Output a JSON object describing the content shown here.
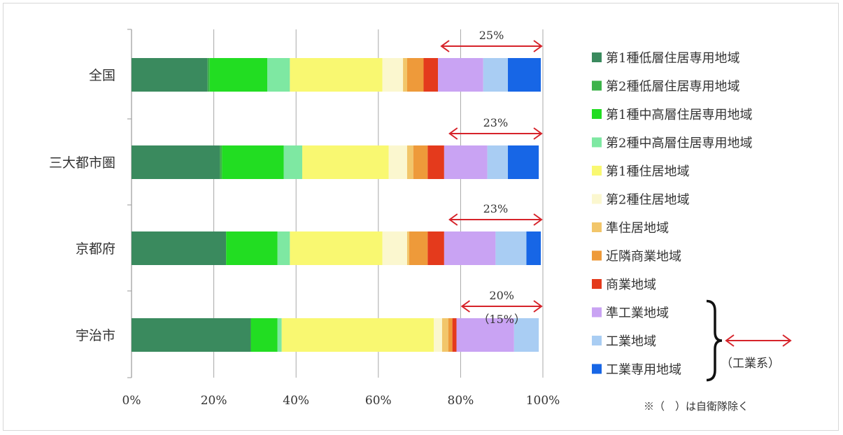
{
  "chart_data": {
    "type": "bar",
    "orientation": "horizontal",
    "stacked": "percent",
    "categories": [
      "全国",
      "三大都市圏",
      "京都府",
      "宇治市"
    ],
    "xlim": [
      0,
      100
    ],
    "x_ticks": [
      "0%",
      "20%",
      "40%",
      "60%",
      "80%",
      "100%"
    ],
    "grid": "vertical",
    "legend_position": "right",
    "series": [
      {
        "name": "第1種低層住居専用地域",
        "color": "#3a8a5e",
        "values": [
          18.5,
          21.5,
          23.0,
          29.0
        ]
      },
      {
        "name": "第2種低層住居専用地域",
        "color": "#3db34a",
        "values": [
          0.5,
          0.5,
          0.0,
          0.0
        ]
      },
      {
        "name": "第1種中高層住居専用地域",
        "color": "#22dd22",
        "values": [
          14.0,
          15.0,
          12.5,
          6.5
        ]
      },
      {
        "name": "第2種中高層住居専用地域",
        "color": "#7ee8a2",
        "values": [
          5.5,
          4.5,
          3.0,
          1.0
        ]
      },
      {
        "name": "第1種住居地域",
        "color": "#f9f871",
        "values": [
          22.5,
          21.0,
          22.5,
          37.0
        ]
      },
      {
        "name": "第2種住居地域",
        "color": "#fbf7cf",
        "values": [
          5.0,
          4.5,
          6.0,
          2.0
        ]
      },
      {
        "name": "準住居地域",
        "color": "#f2c66a",
        "values": [
          1.0,
          1.5,
          0.5,
          1.5
        ]
      },
      {
        "name": "近隣商業地域",
        "color": "#ee9a3a",
        "values": [
          4.0,
          3.5,
          4.5,
          1.0
        ]
      },
      {
        "name": "商業地域",
        "color": "#e43a1c",
        "values": [
          3.5,
          4.0,
          4.0,
          1.0
        ]
      },
      {
        "name": "準工業地域",
        "color": "#c9a3f3",
        "values": [
          11.0,
          10.5,
          12.5,
          14.0
        ]
      },
      {
        "name": "工業地域",
        "color": "#a9cdf3",
        "values": [
          6.0,
          5.0,
          7.5,
          6.0
        ]
      },
      {
        "name": "工業専用地域",
        "color": "#1766e6",
        "values": [
          8.0,
          7.5,
          3.5,
          0.0
        ]
      }
    ],
    "annotations": [
      {
        "category": "全国",
        "text": "25%",
        "sub": "",
        "from": 75,
        "to": 100
      },
      {
        "category": "三大都市圏",
        "text": "23%",
        "sub": "",
        "from": 77,
        "to": 100
      },
      {
        "category": "京都府",
        "text": "23%",
        "sub": "",
        "from": 77,
        "to": 100
      },
      {
        "category": "宇治市",
        "text": "20%",
        "sub": "（15%）",
        "from": 80,
        "to": 100
      }
    ],
    "group_label": "（工業系）",
    "group_members": [
      "準工業地域",
      "工業地域",
      "工業専用地域"
    ],
    "footnote": "※（　）は自衛隊除く",
    "arrow_color": "#d6232a"
  }
}
